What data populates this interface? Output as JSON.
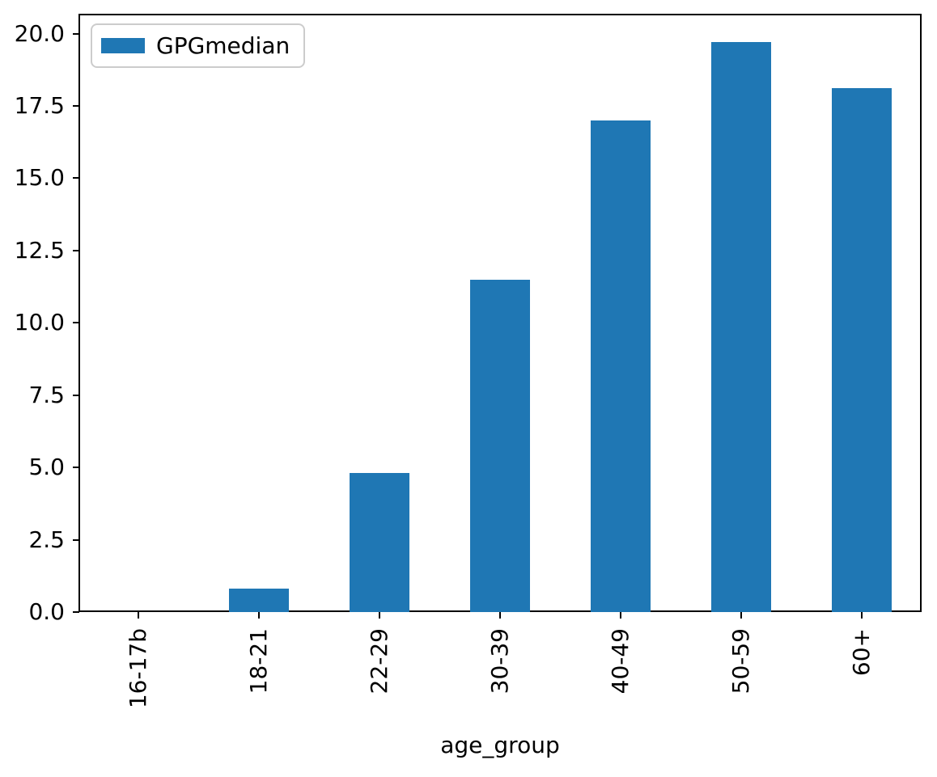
{
  "chart_data": {
    "type": "bar",
    "title": "",
    "xlabel": "age_group",
    "ylabel": "",
    "categories": [
      "16-17b",
      "18-21",
      "22-29",
      "30-39",
      "40-49",
      "50-59",
      "60+"
    ],
    "series": [
      {
        "name": "GPGmedian",
        "values": [
          0.0,
          0.8,
          4.8,
          11.5,
          17.0,
          19.7,
          18.1
        ]
      }
    ],
    "ylim": [
      0,
      20.685
    ],
    "yticks": [
      0.0,
      2.5,
      5.0,
      7.5,
      10.0,
      12.5,
      15.0,
      17.5,
      20.0
    ],
    "ytick_labels": [
      "0.0",
      "2.5",
      "5.0",
      "7.5",
      "10.0",
      "12.5",
      "15.0",
      "17.5",
      "20.0"
    ],
    "x_tick_rotation": 90,
    "grid": false,
    "legend": {
      "position": "upper left",
      "entries": [
        "GPGmedian"
      ]
    },
    "bar_color": "#1f77b4",
    "legend_border_color": "#cccccc",
    "axis_color": "#000000",
    "background_color": "#ffffff"
  }
}
